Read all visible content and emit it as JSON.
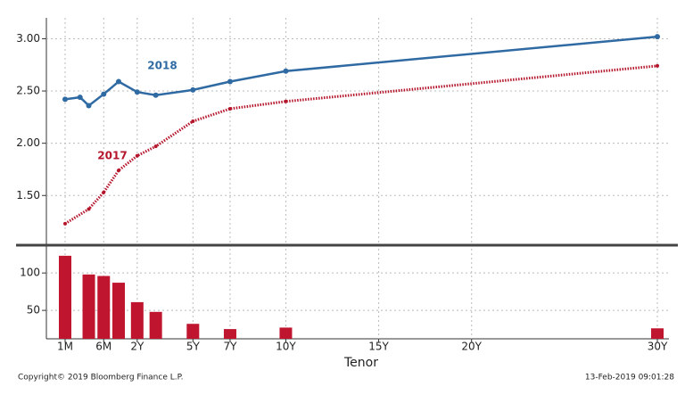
{
  "chart_data": [
    {
      "type": "line",
      "ylim": [
        1.05,
        3.2
      ],
      "yticks": [
        {
          "value": 1.5,
          "label": "1.50"
        },
        {
          "value": 2,
          "label": "2.00"
        },
        {
          "value": 2.5,
          "label": "2.50"
        },
        {
          "value": 3,
          "label": "3.00"
        }
      ],
      "xlim": [
        0.0833,
        30
      ],
      "annotations": [
        "2018",
        "2017"
      ],
      "series": [
        {
          "name": "2018",
          "color": "#2f6aa3",
          "x": [
            0.0833,
            0.1667,
            0.25,
            0.5,
            1,
            2,
            3,
            5,
            7,
            10,
            30
          ],
          "values": [
            2.42,
            2.44,
            2.36,
            2.47,
            2.59,
            2.49,
            2.46,
            2.51,
            2.59,
            2.69,
            3.02
          ]
        },
        {
          "name": "2017",
          "color": "#b5152b",
          "x": [
            0.0833,
            0.25,
            0.5,
            1,
            2,
            3,
            5,
            7,
            10,
            30
          ],
          "values": [
            1.23,
            1.37,
            1.53,
            1.74,
            1.88,
            1.97,
            2.21,
            2.33,
            2.4,
            2.74
          ]
        }
      ]
    },
    {
      "type": "bar",
      "ylim": [
        12,
        130
      ],
      "yticks": [
        50,
        100
      ],
      "xlim": [
        0.0833,
        30
      ],
      "xticks": [
        {
          "value": 0.0833,
          "label": "1M"
        },
        {
          "value": 0.5,
          "label": "6M"
        },
        {
          "value": 2,
          "label": "2Y"
        },
        {
          "value": 5,
          "label": "5Y"
        },
        {
          "value": 7,
          "label": "7Y"
        },
        {
          "value": 10,
          "label": "10Y"
        },
        {
          "value": 15,
          "label": "15Y"
        },
        {
          "value": 20,
          "label": "20Y"
        },
        {
          "value": 30,
          "label": "30Y"
        }
      ],
      "xlabel": "Tenor",
      "color": "#c0152f",
      "x": [
        0.0833,
        0.25,
        0.5,
        1,
        2,
        3,
        5,
        7,
        10,
        30
      ],
      "values": [
        123,
        98,
        96,
        87,
        61,
        48,
        32,
        25,
        27,
        26
      ]
    }
  ],
  "footer": {
    "copyright": "Copyright© 2019 Bloomberg Finance L.P.",
    "timestamp": "13-Feb-2019 09:01:28"
  }
}
